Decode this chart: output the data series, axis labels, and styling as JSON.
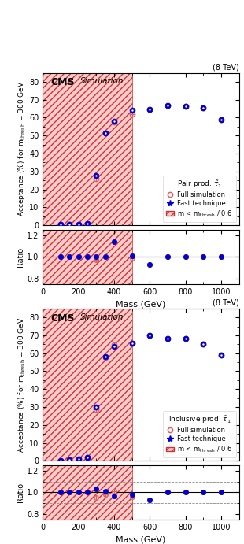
{
  "pair_mass": [
    100,
    150,
    200,
    250,
    300,
    350,
    400,
    500,
    600,
    700,
    800,
    900,
    1000
  ],
  "pair_full": [
    0.3,
    0.3,
    0.5,
    0.8,
    26.0,
    51.5,
    57.5,
    62.0,
    64.5,
    67.0,
    66.5,
    65.5,
    59.0
  ],
  "pair_fast": [
    0.3,
    0.3,
    0.5,
    0.8,
    27.5,
    51.5,
    58.0,
    64.0,
    64.5,
    67.0,
    66.5,
    65.5,
    59.0
  ],
  "pair_ratio_full": [
    1.0,
    1.0,
    1.0,
    1.0,
    0.97,
    1.0,
    1.14,
    0.99,
    0.93,
    1.0,
    1.0,
    1.0,
    1.0
  ],
  "pair_ratio_fast": [
    1.0,
    1.0,
    1.0,
    1.0,
    1.0,
    1.0,
    1.14,
    1.01,
    0.93,
    1.0,
    1.0,
    1.0,
    1.0
  ],
  "incl_mass": [
    100,
    150,
    200,
    250,
    300,
    350,
    400,
    500,
    600,
    700,
    800,
    900,
    1000
  ],
  "incl_full": [
    0.3,
    0.5,
    1.0,
    2.0,
    28.5,
    57.5,
    64.5,
    65.5,
    70.0,
    68.0,
    68.0,
    65.0,
    59.0
  ],
  "incl_fast": [
    0.3,
    0.5,
    1.0,
    2.0,
    30.0,
    58.0,
    64.0,
    65.5,
    70.0,
    68.0,
    68.0,
    65.0,
    59.0
  ],
  "incl_ratio_full": [
    1.0,
    1.0,
    1.0,
    1.0,
    0.95,
    0.98,
    1.01,
    0.96,
    0.93,
    1.0,
    1.0,
    1.0,
    1.0
  ],
  "incl_ratio_fast": [
    1.0,
    1.0,
    1.0,
    1.0,
    1.03,
    1.01,
    0.97,
    0.98,
    0.93,
    1.0,
    1.0,
    1.0,
    1.0
  ],
  "shade_xmax": 500,
  "xlim": [
    0,
    1100
  ],
  "ylim_main": [
    0,
    85
  ],
  "ylim_ratio": [
    0.75,
    1.25
  ],
  "ylabel_main": "Acceptance (%) for m$_\\mathrm{thresh}$ = 300 GeV",
  "xlabel": "Mass (GeV)",
  "yticks_main": [
    0,
    10,
    20,
    30,
    40,
    50,
    60,
    70,
    80
  ],
  "ratio_yticks": [
    0.8,
    1.0,
    1.2
  ],
  "ratio_dashed": [
    0.9,
    1.1
  ],
  "energy_label": "(8 TeV)",
  "pair_legend_title": "Pair prod. $\\tilde{\\tau}_1$",
  "incl_legend_title": "Inclusive prod. $\\tilde{\\tau}_1$",
  "full_label": "Full simulation",
  "fast_label": "Fast technique",
  "shade_label": "m < m$_\\mathrm{thresh}$ / 0.6",
  "color_full": "#e06060",
  "color_fast": "#0000cc",
  "color_shade_face": "#ffcccc",
  "color_shade_edge": "#cc3333",
  "xticks": [
    0,
    200,
    400,
    600,
    800,
    1000
  ]
}
